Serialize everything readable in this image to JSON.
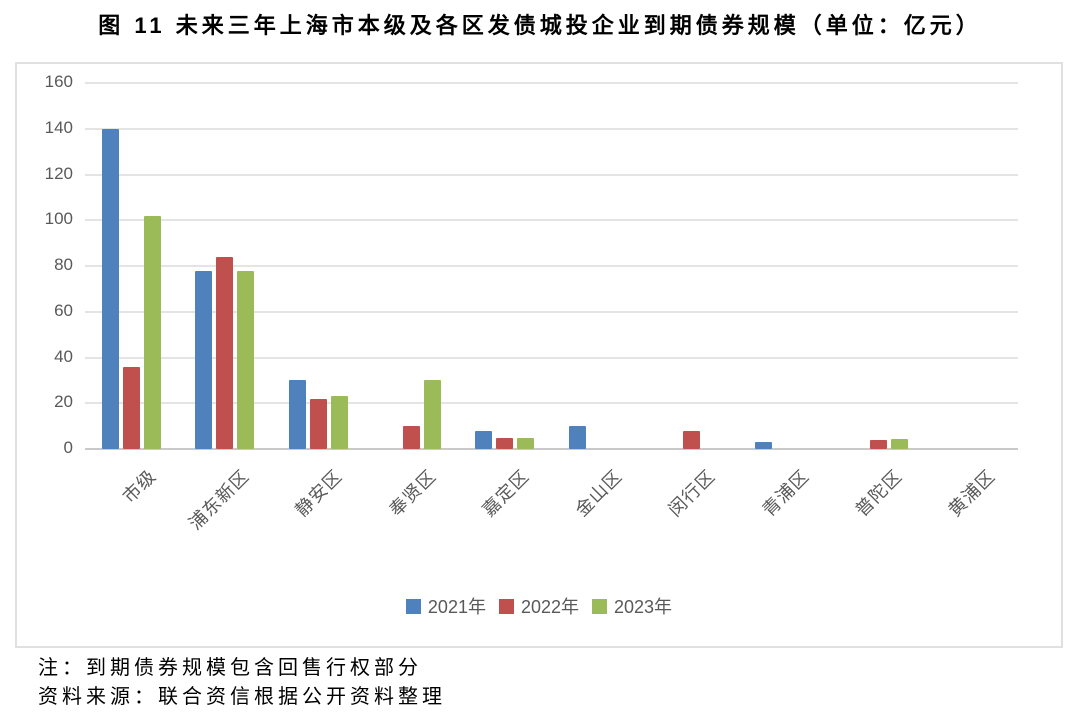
{
  "chart_data": {
    "type": "bar",
    "title": "图 11  未来三年上海市本级及各区发债城投企业到期债券规模（单位：亿元）",
    "categories": [
      "市级",
      "浦东新区",
      "静安区",
      "奉贤区",
      "嘉定区",
      "金山区",
      "闵行区",
      "青浦区",
      "普陀区",
      "黄浦区"
    ],
    "series": [
      {
        "name": "2021年",
        "color": "#4F81BD",
        "values": [
          140,
          78,
          30,
          0,
          8,
          10,
          0,
          3,
          0,
          0
        ]
      },
      {
        "name": "2022年",
        "color": "#C0504D",
        "values": [
          36,
          84,
          22,
          10,
          5,
          0,
          8,
          0,
          4,
          0
        ]
      },
      {
        "name": "2023年",
        "color": "#9BBB59",
        "values": [
          102,
          78,
          23,
          30,
          5,
          0,
          0,
          0,
          4.5,
          0
        ]
      }
    ],
    "xlabel": "",
    "ylabel": "",
    "ylim": [
      0,
      160
    ],
    "yticks": [
      0,
      20,
      40,
      60,
      80,
      100,
      120,
      140,
      160
    ],
    "grid": true,
    "legend_position": "bottom-center",
    "gridline_color": "#E4E4E4",
    "axis_label_color": "#595959"
  },
  "notes": {
    "note": "注：到期债券规模包含回售行权部分",
    "source": "资料来源：联合资信根据公开资料整理"
  }
}
